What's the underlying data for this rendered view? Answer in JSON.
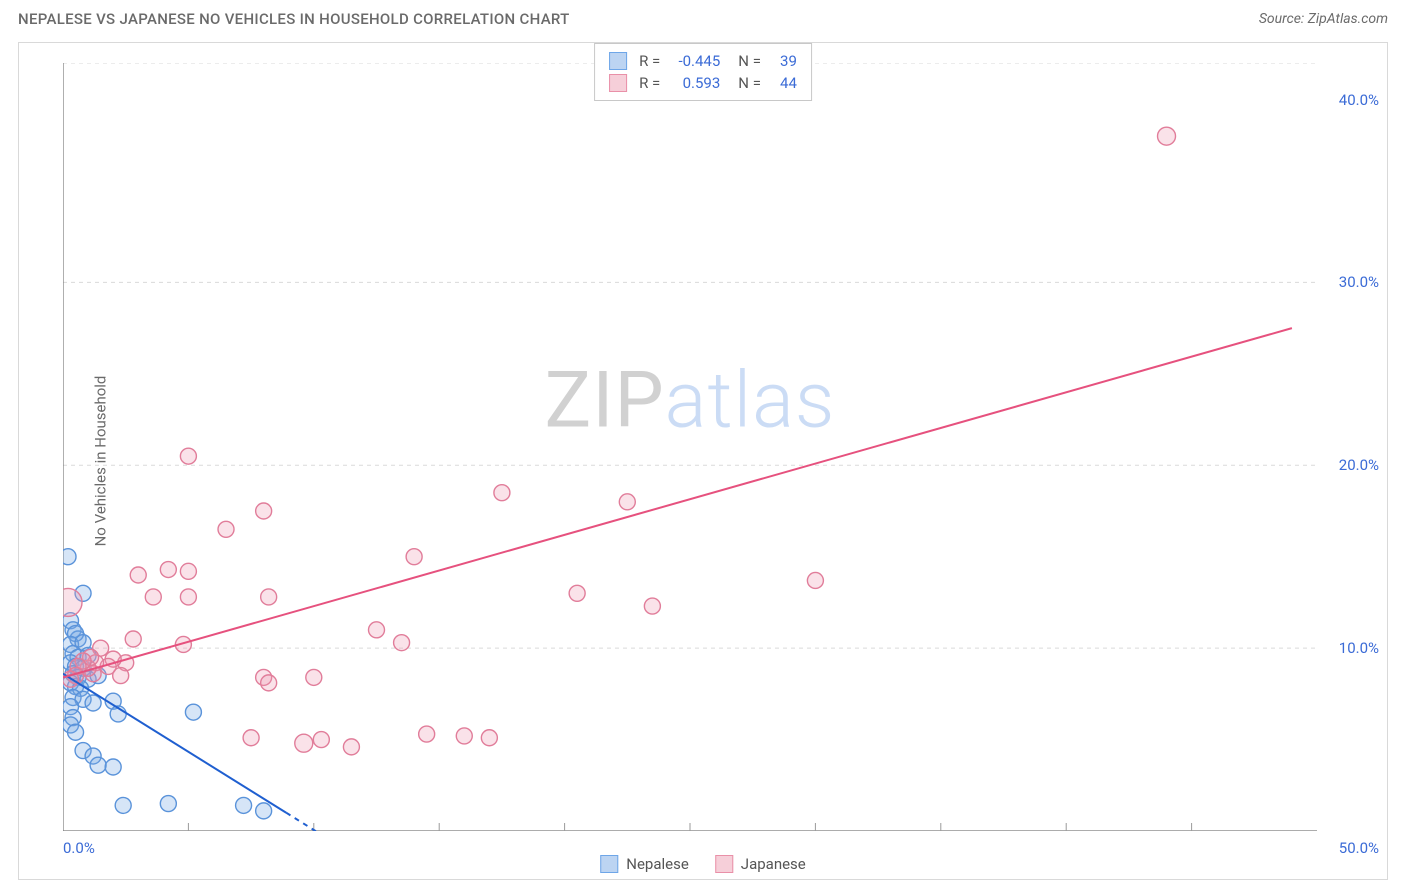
{
  "header": {
    "title": "NEPALESE VS JAPANESE NO VEHICLES IN HOUSEHOLD CORRELATION CHART",
    "source": "Source: ZipAtlas.com"
  },
  "ylabel": "No Vehicles in Household",
  "watermark": {
    "part1": "ZIP",
    "part2": "atlas"
  },
  "chart": {
    "type": "scatter",
    "background_color": "#ffffff",
    "grid_color": "#dadada",
    "axis_color": "#7a7a7a",
    "xlim": [
      0,
      50
    ],
    "ylim": [
      0,
      42
    ],
    "yticks": [
      {
        "v": 10,
        "label": "10.0%"
      },
      {
        "v": 20,
        "label": "20.0%"
      },
      {
        "v": 30,
        "label": "30.0%"
      },
      {
        "v": 40,
        "label": "40.0%"
      }
    ],
    "ygrid": [
      10,
      20,
      30,
      42
    ],
    "xticks_minor": [
      5,
      10,
      15,
      20,
      25,
      30,
      35,
      40,
      45
    ],
    "xticks_label": [
      {
        "v": 0,
        "label": "0.0%"
      },
      {
        "v": 50,
        "label": "50.0%"
      }
    ],
    "series": [
      {
        "name": "Nepalese",
        "marker_color": "#6ea6e8",
        "marker_fill": "rgba(120,170,230,0.30)",
        "marker_stroke": "#5a93da",
        "marker_radius": 8,
        "line_color": "#1f5fd0",
        "line_width": 2,
        "r_value": "-0.445",
        "n_value": "39",
        "swatch_fill": "#bcd4f2",
        "swatch_border": "#6ea6e8",
        "trend": {
          "x1": 0,
          "y1": 8.6,
          "x2": 8.9,
          "y2": 1.0
        },
        "trend_dash": {
          "x1": 8.9,
          "y1": 1.0,
          "x2": 11.0,
          "y2": -0.8
        },
        "points": [
          {
            "x": 0.2,
            "y": 15.0
          },
          {
            "x": 0.8,
            "y": 13.0
          },
          {
            "x": 0.3,
            "y": 11.5
          },
          {
            "x": 0.4,
            "y": 11.0
          },
          {
            "x": 0.6,
            "y": 10.5
          },
          {
            "x": 0.5,
            "y": 10.8
          },
          {
            "x": 0.3,
            "y": 10.2
          },
          {
            "x": 0.8,
            "y": 10.3
          },
          {
            "x": 0.4,
            "y": 9.7
          },
          {
            "x": 0.6,
            "y": 9.5
          },
          {
            "x": 1.0,
            "y": 9.6
          },
          {
            "x": 0.3,
            "y": 9.2
          },
          {
            "x": 0.5,
            "y": 9.0
          },
          {
            "x": 0.8,
            "y": 8.9
          },
          {
            "x": 0.4,
            "y": 8.6
          },
          {
            "x": 0.6,
            "y": 8.4
          },
          {
            "x": 1.0,
            "y": 8.3
          },
          {
            "x": 1.4,
            "y": 8.5
          },
          {
            "x": 0.3,
            "y": 8.1
          },
          {
            "x": 0.5,
            "y": 7.9
          },
          {
            "x": 0.7,
            "y": 7.8
          },
          {
            "x": 0.4,
            "y": 7.3
          },
          {
            "x": 0.8,
            "y": 7.2
          },
          {
            "x": 0.3,
            "y": 6.8
          },
          {
            "x": 1.2,
            "y": 7.0
          },
          {
            "x": 2.0,
            "y": 7.1
          },
          {
            "x": 0.4,
            "y": 6.2
          },
          {
            "x": 2.2,
            "y": 6.4
          },
          {
            "x": 5.2,
            "y": 6.5
          },
          {
            "x": 0.3,
            "y": 5.8
          },
          {
            "x": 0.5,
            "y": 5.4
          },
          {
            "x": 0.8,
            "y": 4.4
          },
          {
            "x": 1.2,
            "y": 4.1
          },
          {
            "x": 1.4,
            "y": 3.6
          },
          {
            "x": 2.0,
            "y": 3.5
          },
          {
            "x": 2.4,
            "y": 1.4
          },
          {
            "x": 4.2,
            "y": 1.5
          },
          {
            "x": 7.2,
            "y": 1.4
          },
          {
            "x": 8.0,
            "y": 1.1
          }
        ]
      },
      {
        "name": "Japanese",
        "marker_color": "#e990a8",
        "marker_fill": "rgba(238,150,175,0.28)",
        "marker_stroke": "#e17d9a",
        "marker_radius": 8,
        "line_color": "#e6517e",
        "line_width": 2,
        "r_value": "0.593",
        "n_value": "44",
        "swatch_fill": "#f6cfd9",
        "swatch_border": "#e990a8",
        "trend": {
          "x1": 0,
          "y1": 8.4,
          "x2": 49,
          "y2": 27.5
        },
        "points": [
          {
            "x": 44.0,
            "y": 38.0,
            "r": 9
          },
          {
            "x": 30.0,
            "y": 13.7
          },
          {
            "x": 22.5,
            "y": 18.0
          },
          {
            "x": 23.5,
            "y": 12.3
          },
          {
            "x": 20.5,
            "y": 13.0
          },
          {
            "x": 17.5,
            "y": 18.5
          },
          {
            "x": 16.0,
            "y": 5.2
          },
          {
            "x": 17.0,
            "y": 5.1
          },
          {
            "x": 14.0,
            "y": 15.0
          },
          {
            "x": 14.5,
            "y": 5.3
          },
          {
            "x": 12.5,
            "y": 11.0
          },
          {
            "x": 11.5,
            "y": 4.6
          },
          {
            "x": 13.5,
            "y": 10.3
          },
          {
            "x": 10.3,
            "y": 5.0
          },
          {
            "x": 10.0,
            "y": 8.4
          },
          {
            "x": 9.6,
            "y": 4.8,
            "r": 9
          },
          {
            "x": 8.0,
            "y": 17.5
          },
          {
            "x": 8.2,
            "y": 12.8
          },
          {
            "x": 8.0,
            "y": 8.4
          },
          {
            "x": 8.2,
            "y": 8.1
          },
          {
            "x": 7.5,
            "y": 5.1
          },
          {
            "x": 6.5,
            "y": 16.5
          },
          {
            "x": 5.0,
            "y": 20.5
          },
          {
            "x": 5.0,
            "y": 14.2
          },
          {
            "x": 5.0,
            "y": 12.8
          },
          {
            "x": 4.8,
            "y": 10.2
          },
          {
            "x": 4.2,
            "y": 14.3
          },
          {
            "x": 3.6,
            "y": 12.8
          },
          {
            "x": 3.0,
            "y": 14.0
          },
          {
            "x": 2.8,
            "y": 10.5
          },
          {
            "x": 2.5,
            "y": 9.2
          },
          {
            "x": 2.3,
            "y": 8.5
          },
          {
            "x": 2.0,
            "y": 9.4
          },
          {
            "x": 1.8,
            "y": 9.0
          },
          {
            "x": 1.5,
            "y": 10.0
          },
          {
            "x": 1.3,
            "y": 9.2
          },
          {
            "x": 1.2,
            "y": 8.6
          },
          {
            "x": 1.0,
            "y": 8.9
          },
          {
            "x": 1.1,
            "y": 9.5
          },
          {
            "x": 0.8,
            "y": 9.3
          },
          {
            "x": 0.6,
            "y": 9.0
          },
          {
            "x": 0.5,
            "y": 8.5
          },
          {
            "x": 0.2,
            "y": 12.5,
            "r": 14
          },
          {
            "x": 0.3,
            "y": 8.3
          }
        ]
      }
    ]
  },
  "legend": {
    "items": [
      {
        "label": "Nepalese",
        "fill": "#bcd4f2",
        "border": "#6ea6e8"
      },
      {
        "label": "Japanese",
        "fill": "#f6cfd9",
        "border": "#e990a8"
      }
    ]
  }
}
